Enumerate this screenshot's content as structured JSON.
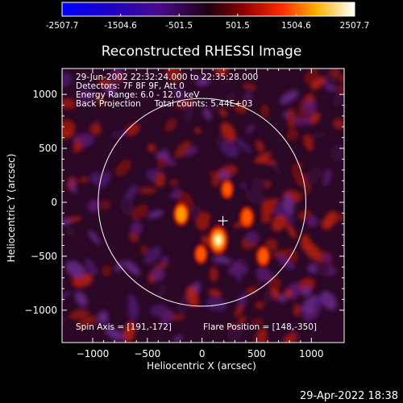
{
  "colorbar": {
    "ticks": [
      "-2507.7",
      "-1504.6",
      "-501.5",
      "501.5",
      "1504.6",
      "2507.7"
    ],
    "range": [
      -2507.7,
      2507.7
    ]
  },
  "footer": {
    "timestamp": "29-Apr-2022 18:38"
  },
  "chart_data": {
    "type": "heatmap",
    "title": "Reconstructed RHESSI Image",
    "xlabel": "Heliocentric X (arcsec)",
    "ylabel": "Heliocentric Y (arcsec)",
    "xlim": [
      -1280,
      1300
    ],
    "ylim": [
      -1300,
      1240
    ],
    "x_ticks": [
      -1000,
      -500,
      0,
      500,
      1000
    ],
    "y_ticks": [
      -1000,
      -500,
      0,
      500,
      1000
    ],
    "x_tick_labels": [
      "−1000",
      "−500",
      "0",
      "500",
      "1000"
    ],
    "y_tick_labels": [
      "−1000",
      "−500",
      "0",
      "500",
      "1000"
    ],
    "info_lines": [
      "29-Jun-2002 22:32:24.000 to 22:35:28.000",
      "Detectors: 7F 8F 9F, Att 0",
      "Energy Range: 6.0 - 12.0 keV",
      "Back Projection     Total counts: 5.44E+03"
    ],
    "spin_axis": "Spin Axis = [191,-172]",
    "flare_position": "Flare Position = [148,-350]",
    "solar_limb": {
      "center": [
        0,
        0
      ],
      "radius": 950
    },
    "spin_axis_xy": [
      191,
      -172
    ],
    "bright_sources": [
      {
        "x": 148,
        "y": -350,
        "value": 2507.7
      },
      {
        "x": -190,
        "y": -110,
        "value": 1500
      },
      {
        "x": 410,
        "y": -140,
        "value": 1200
      },
      {
        "x": 560,
        "y": -500,
        "value": 1100
      },
      {
        "x": -10,
        "y": -480,
        "value": 900
      },
      {
        "x": 230,
        "y": 120,
        "value": 800
      }
    ]
  }
}
